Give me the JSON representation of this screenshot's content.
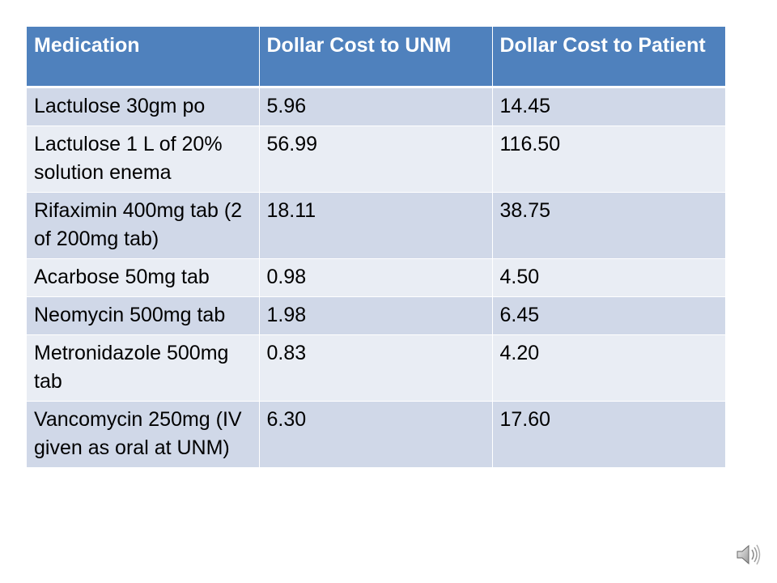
{
  "table": {
    "headers": [
      "Medication",
      "Dollar Cost to UNM",
      "Dollar Cost to Patient"
    ],
    "rows": [
      [
        "Lactulose 30gm po",
        "5.96",
        "14.45"
      ],
      [
        "Lactulose 1 L of 20% solution enema",
        "56.99",
        "116.50"
      ],
      [
        "Rifaximin 400mg tab (2 of 200mg tab)",
        "18.11",
        "38.75"
      ],
      [
        "Acarbose 50mg tab",
        "0.98",
        "4.50"
      ],
      [
        "Neomycin 500mg tab",
        "1.98",
        "6.45"
      ],
      [
        "Metronidazole 500mg tab",
        "0.83",
        "4.20"
      ],
      [
        "Vancomycin 250mg (IV given as oral at UNM)",
        "6.30",
        "17.60"
      ]
    ]
  },
  "icons": {
    "audio": "speaker-icon"
  },
  "colors": {
    "header_bg": "#4f81bd",
    "row_odd_bg": "#d0d8e8",
    "row_even_bg": "#e9edf4",
    "header_text": "#ffffff"
  }
}
